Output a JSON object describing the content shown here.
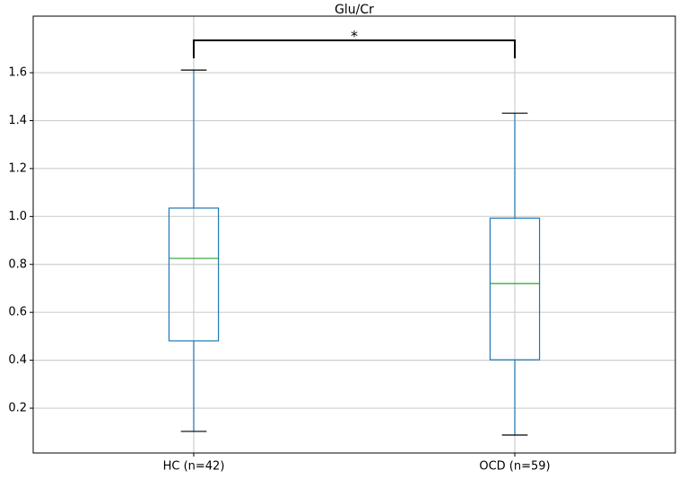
{
  "chart_data": {
    "type": "box",
    "title": "Glu/Cr",
    "annotation": "*",
    "categories": [
      "HC (n=42)",
      "OCD (n=59)"
    ],
    "boxes": [
      {
        "whislo": 0.103,
        "q1": 0.481,
        "med": 0.825,
        "q3": 1.035,
        "whishi": 1.611
      },
      {
        "whislo": 0.088,
        "q1": 0.402,
        "med": 0.72,
        "q3": 0.993,
        "whishi": 1.431
      }
    ],
    "colors": {
      "box": "#1f77b4",
      "median": "#2ca02c",
      "whisker": "#1f77b4",
      "cap": "#000000"
    },
    "ylim": [
      0.013,
      1.836
    ],
    "yticks": [
      0.2,
      0.4,
      0.6,
      0.8,
      1.0,
      1.2,
      1.4,
      1.6
    ],
    "grid": true
  }
}
